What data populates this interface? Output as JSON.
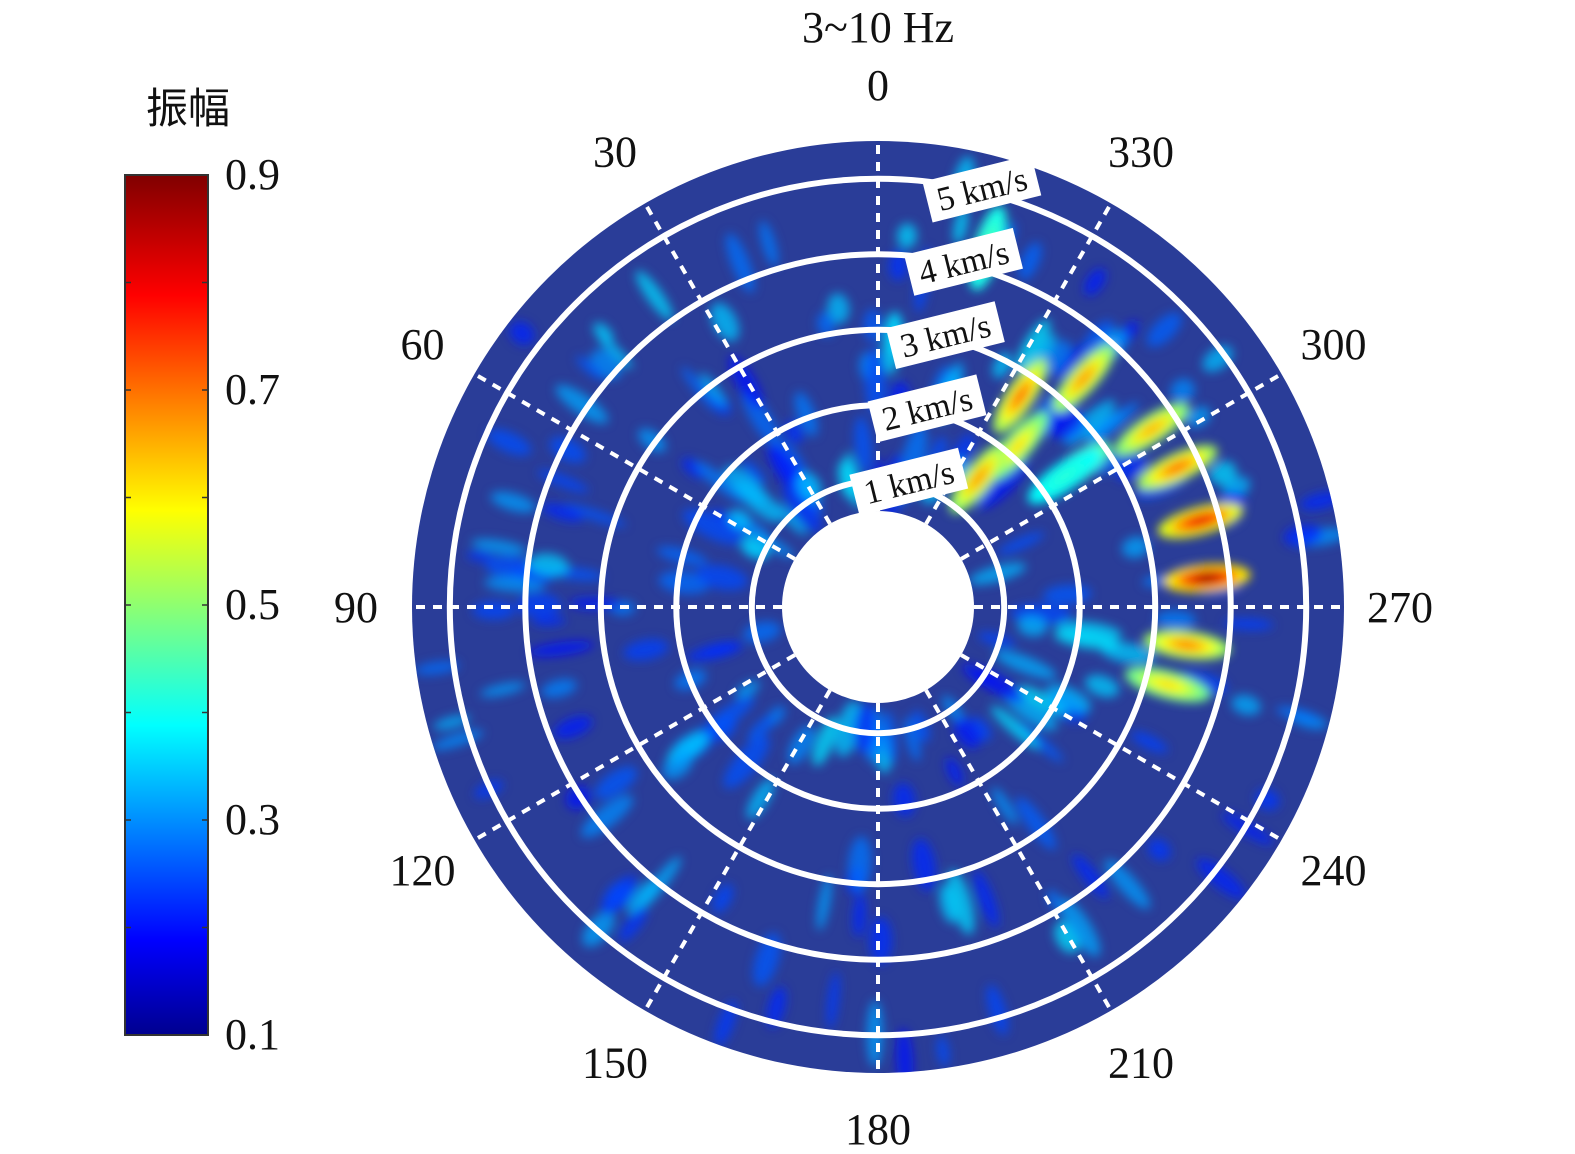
{
  "chart_data": {
    "type": "heatmap",
    "projection": "polar",
    "title": "3~10 Hz",
    "colorbar": {
      "label": "振幅",
      "ticks": [
        "0.9",
        "0.7",
        "0.5",
        "0.3",
        "0.1"
      ],
      "range": [
        0.1,
        0.9
      ],
      "colormap": [
        "#00008f",
        "#0000ff",
        "#00ffff",
        "#ffff00",
        "#ff0000",
        "#800000"
      ]
    },
    "angle_ticks": [
      "0",
      "30",
      "60",
      "90",
      "120",
      "150",
      "180",
      "210",
      "240",
      "270",
      "300",
      "330"
    ],
    "angle_values": [
      0,
      30,
      60,
      90,
      120,
      150,
      180,
      210,
      240,
      270,
      300,
      330
    ],
    "angle_direction": "counterclockwise from top",
    "radial_labels": [
      "1 km/s",
      "2 km/s",
      "3 km/s",
      "4 km/s",
      "5 km/s"
    ],
    "radial_values": [
      1,
      2,
      3,
      4,
      5
    ],
    "radial_range": [
      0.6,
      5.5
    ],
    "radial_unit": "km/s",
    "grid": true,
    "background_value": 0.15,
    "hotspots": [
      {
        "azimuth": 275,
        "velocity": 3.7,
        "amplitude": 0.9
      },
      {
        "azimuth": 285,
        "velocity": 3.75,
        "amplitude": 0.82
      },
      {
        "azimuth": 295,
        "velocity": 3.7,
        "amplitude": 0.72
      },
      {
        "azimuth": 303,
        "velocity": 3.65,
        "amplitude": 0.66
      },
      {
        "azimuth": 263,
        "velocity": 3.45,
        "amplitude": 0.7
      },
      {
        "azimuth": 255,
        "velocity": 3.3,
        "amplitude": 0.62
      },
      {
        "azimuth": 318,
        "velocity": 3.4,
        "amplitude": 0.68
      },
      {
        "azimuth": 326,
        "velocity": 2.7,
        "amplitude": 0.72
      },
      {
        "azimuth": 319,
        "velocity": 2.15,
        "amplitude": 0.62
      },
      {
        "azimuth": 322,
        "velocity": 1.5,
        "amplitude": 0.68
      },
      {
        "azimuth": 305,
        "velocity": 2.5,
        "amplitude": 0.58
      },
      {
        "azimuth": 343,
        "velocity": 4.3,
        "amplitude": 0.45
      },
      {
        "azimuth": 305,
        "velocity": 2.35,
        "amplitude": 0.42
      }
    ]
  }
}
